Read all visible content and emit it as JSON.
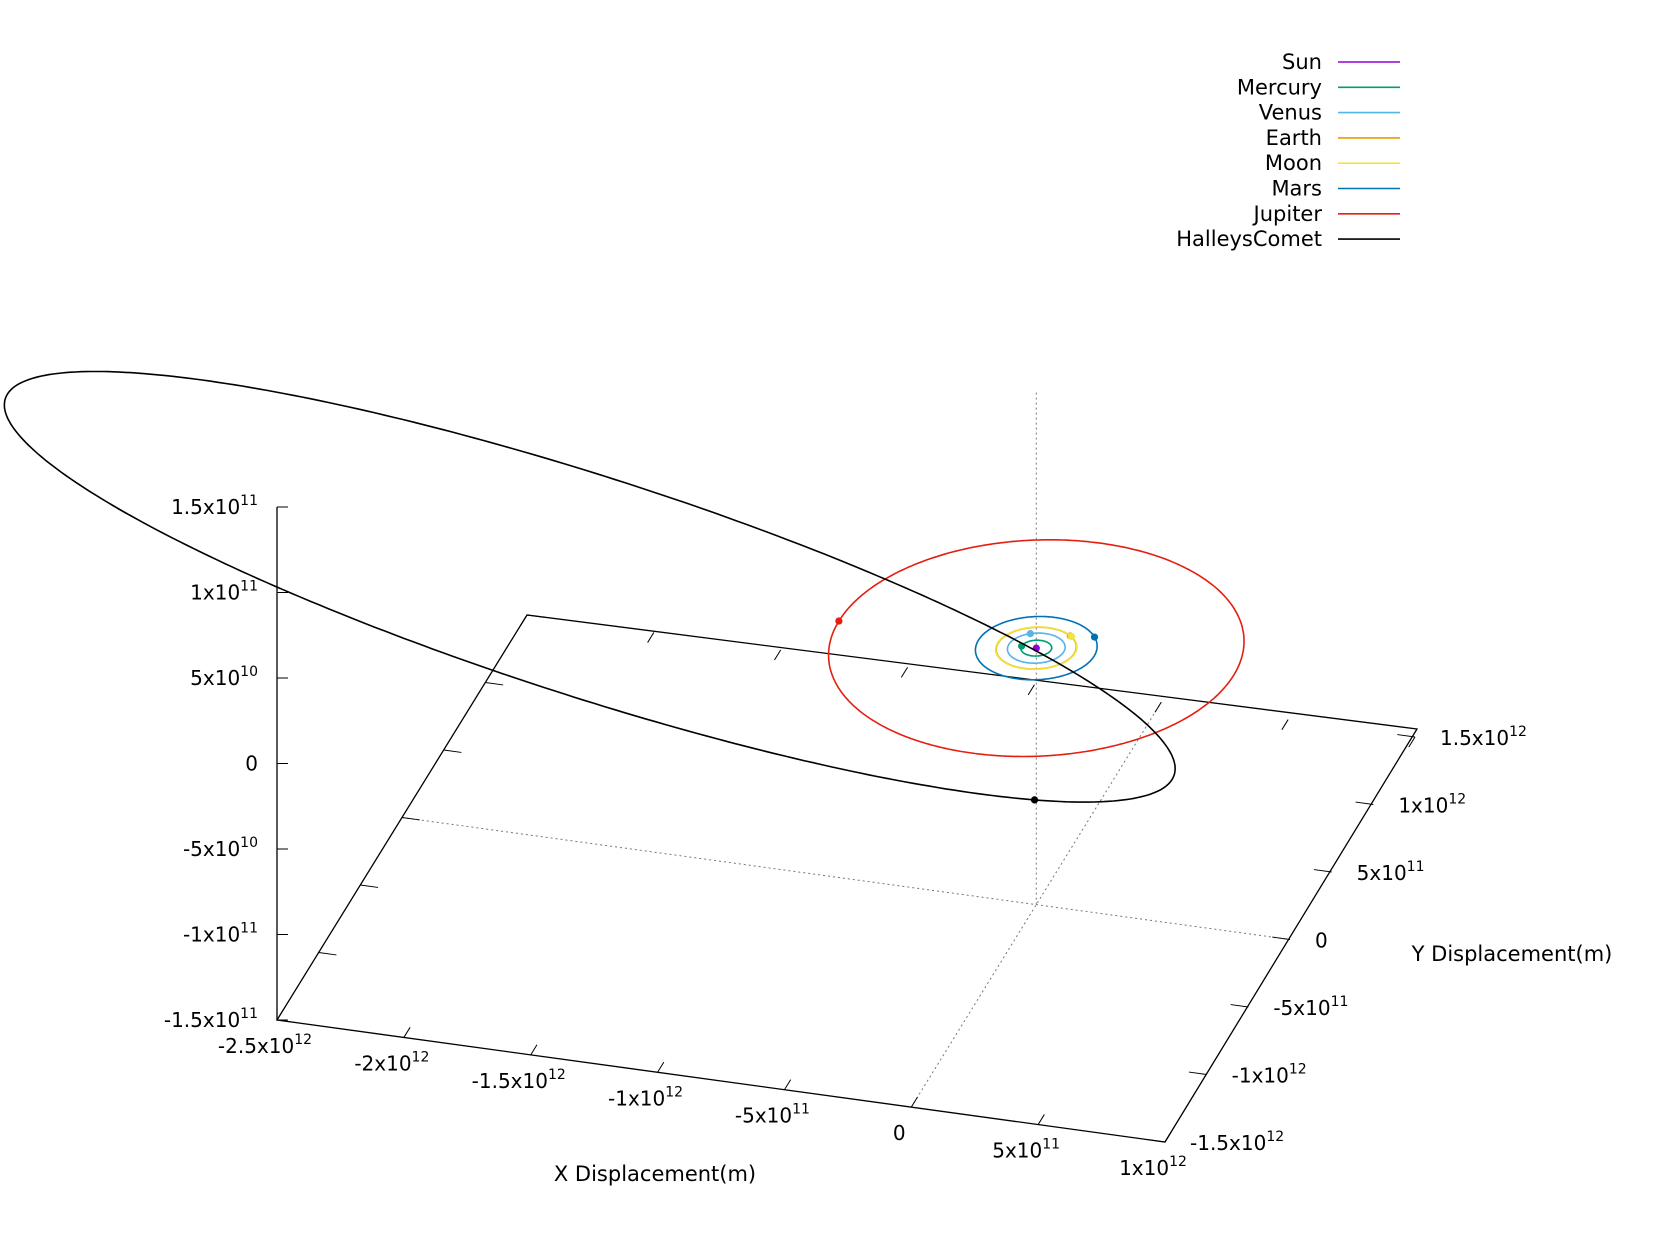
{
  "chart_data": {
    "type": "line",
    "plot_kind": "3d-orbit-trajectories",
    "xlabel": "X Displacement(m)",
    "ylabel": "Y Displacement(m)",
    "zlabel": "",
    "xlim": [
      -2500000000000,
      1000000000000
    ],
    "ylim": [
      -1500000000000,
      1500000000000
    ],
    "zlim": [
      -150000000000,
      150000000000
    ],
    "x_ticks": [
      {
        "value": -2500000000000,
        "label": "-2.5x10",
        "exp": "12"
      },
      {
        "value": -2000000000000,
        "label": "-2x10",
        "exp": "12"
      },
      {
        "value": -1500000000000,
        "label": "-1.5x10",
        "exp": "12"
      },
      {
        "value": -1000000000000,
        "label": "-1x10",
        "exp": "12"
      },
      {
        "value": -500000000000,
        "label": "-5x10",
        "exp": "11"
      },
      {
        "value": 0,
        "label": "0",
        "exp": ""
      },
      {
        "value": 500000000000,
        "label": "5x10",
        "exp": "11"
      },
      {
        "value": 1000000000000,
        "label": "1x10",
        "exp": "12"
      }
    ],
    "y_ticks": [
      {
        "value": -1500000000000,
        "label": "-1.5x10",
        "exp": "12"
      },
      {
        "value": -1000000000000,
        "label": "-1x10",
        "exp": "12"
      },
      {
        "value": -500000000000,
        "label": "-5x10",
        "exp": "11"
      },
      {
        "value": 0,
        "label": "0",
        "exp": ""
      },
      {
        "value": 500000000000,
        "label": "5x10",
        "exp": "11"
      },
      {
        "value": 1000000000000,
        "label": "1x10",
        "exp": "12"
      },
      {
        "value": 1500000000000,
        "label": "1.5x10",
        "exp": "12"
      }
    ],
    "z_ticks": [
      {
        "value": 150000000000,
        "label": "1.5x10",
        "exp": "11"
      },
      {
        "value": 100000000000,
        "label": "1x10",
        "exp": "11"
      },
      {
        "value": 50000000000,
        "label": "5x10",
        "exp": "10"
      },
      {
        "value": 0,
        "label": "0",
        "exp": ""
      },
      {
        "value": -50000000000,
        "label": "-5x10",
        "exp": "10"
      },
      {
        "value": -100000000000,
        "label": "-1x10",
        "exp": "11"
      },
      {
        "value": -150000000000,
        "label": "-1.5x10",
        "exp": "11"
      }
    ],
    "grid": false,
    "legend_position": "top-right",
    "series": [
      {
        "name": "Sun",
        "color": "#9400d3",
        "orbit": {
          "cx": 0,
          "cy": 0,
          "a": 0,
          "b": 0
        },
        "marker_angle_deg": 0
      },
      {
        "name": "Mercury",
        "color": "#009e73",
        "orbit": {
          "cx": 0,
          "cy": 0,
          "a": 57900000000,
          "b": 56700000000
        },
        "marker_angle_deg": 180
      },
      {
        "name": "Venus",
        "color": "#56b4e9",
        "orbit": {
          "cx": 0,
          "cy": 0,
          "a": 108000000000,
          "b": 108000000000
        },
        "marker_angle_deg": 120
      },
      {
        "name": "Earth",
        "color": "#e69f00",
        "orbit": {
          "cx": 0,
          "cy": 0,
          "a": 150000000000,
          "b": 150000000000
        },
        "marker_angle_deg": 50
      },
      {
        "name": "Moon",
        "color": "#f0e442",
        "orbit": {
          "cx": 0,
          "cy": 0,
          "a": 152000000000,
          "b": 152000000000
        },
        "marker_angle_deg": 48
      },
      {
        "name": "Mars",
        "color": "#0072b2",
        "orbit": {
          "cx": 0,
          "cy": 0,
          "a": 228000000000,
          "b": 227000000000
        },
        "marker_angle_deg": 35
      },
      {
        "name": "Jupiter",
        "color": "#e51e10",
        "orbit": {
          "cx": 0,
          "cy": 0,
          "a": 778000000000,
          "b": 777000000000
        },
        "marker_angle_deg": 180
      },
      {
        "name": "HalleysComet",
        "color": "#000000",
        "orbit": {
          "cx": -1760000000000,
          "cy": 0,
          "a": 2670000000000,
          "b": 680000000000,
          "rotation_deg": 162
        },
        "marker_angle_deg": 150
      }
    ]
  }
}
